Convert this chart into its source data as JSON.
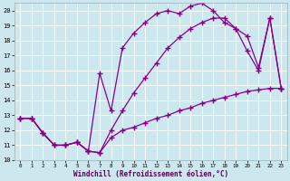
{
  "xlabel": "Windchill (Refroidissement éolien,°C)",
  "bg_color": "#cce8ee",
  "line_color": "#880088",
  "xlim": [
    -0.5,
    23.5
  ],
  "ylim": [
    10,
    20.5
  ],
  "xticks": [
    0,
    1,
    2,
    3,
    4,
    5,
    6,
    7,
    8,
    9,
    10,
    11,
    12,
    13,
    14,
    15,
    16,
    17,
    18,
    19,
    20,
    21,
    22,
    23
  ],
  "yticks": [
    10,
    11,
    12,
    13,
    14,
    15,
    16,
    17,
    18,
    19,
    20
  ],
  "line1_x": [
    0,
    1,
    2,
    3,
    4,
    5,
    6,
    7,
    8,
    9,
    10,
    11,
    12,
    13,
    14,
    15,
    16,
    17,
    18,
    19,
    20,
    21,
    22,
    23
  ],
  "line1_y": [
    12.8,
    12.8,
    11.8,
    11.0,
    11.0,
    11.2,
    10.6,
    10.5,
    11.5,
    12.0,
    12.2,
    12.5,
    12.8,
    13.0,
    13.3,
    13.5,
    13.8,
    14.0,
    14.2,
    14.4,
    14.6,
    14.7,
    14.8,
    14.8
  ],
  "line2_x": [
    0,
    1,
    2,
    3,
    4,
    5,
    6,
    7,
    8,
    9,
    10,
    11,
    12,
    13,
    14,
    15,
    16,
    17,
    18,
    19,
    20,
    21,
    22,
    23
  ],
  "line2_y": [
    12.8,
    12.8,
    11.8,
    11.0,
    11.0,
    11.2,
    10.6,
    10.5,
    12.0,
    13.3,
    14.5,
    15.5,
    16.5,
    17.5,
    18.2,
    18.8,
    19.2,
    19.5,
    19.5,
    18.8,
    18.3,
    16.2,
    19.5,
    14.8
  ],
  "line3_x": [
    0,
    1,
    2,
    3,
    4,
    5,
    6,
    7,
    8,
    9,
    10,
    11,
    12,
    13,
    14,
    15,
    16,
    17,
    18,
    19,
    20,
    21,
    22,
    23
  ],
  "line3_y": [
    12.8,
    12.8,
    11.8,
    11.0,
    11.0,
    11.2,
    10.6,
    15.8,
    13.3,
    17.5,
    18.5,
    19.2,
    19.8,
    20.0,
    19.8,
    20.3,
    20.5,
    20.0,
    19.2,
    18.8,
    17.3,
    16.0,
    19.5,
    14.8
  ]
}
